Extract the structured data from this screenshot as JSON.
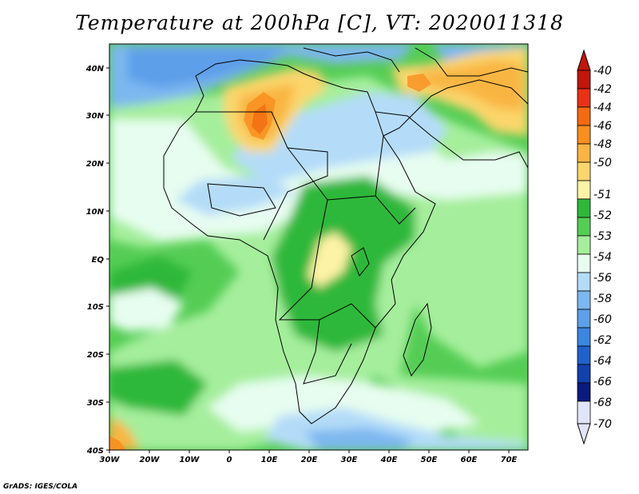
{
  "title": "Temperature at 200hPa [C], VT: 2020011318",
  "credit": "GrADS: IGES/COLA",
  "axes": {
    "lat_labels": [
      "40N",
      "30N",
      "20N",
      "10N",
      "EQ",
      "10S",
      "20S",
      "30S",
      "40S"
    ],
    "lon_labels": [
      "30W",
      "20W",
      "10W",
      "0",
      "10E",
      "20E",
      "30E",
      "40E",
      "50E",
      "60E",
      "70E"
    ]
  },
  "colorbar": {
    "levels": [
      "-40",
      "-42",
      "-44",
      "-46",
      "-48",
      "-50",
      "-51",
      "-52",
      "-53",
      "-54",
      "-56",
      "-58",
      "-60",
      "-62",
      "-64",
      "-66",
      "-68",
      "-70"
    ],
    "colors": [
      "#c0160b",
      "#e83218",
      "#f36a12",
      "#f98f1f",
      "#f9b543",
      "#fbd66c",
      "#fdf3a6",
      "#2fb83a",
      "#55cd55",
      "#a5ee9c",
      "#e7fdf0",
      "#b4dcf8",
      "#7db7ef",
      "#5d9fe9",
      "#3a86e0",
      "#1f62c9",
      "#1241ac",
      "#0a1a7e",
      "#e2e4fb"
    ],
    "top_color": "#c0160b",
    "bottom_color": "#e2e4fb"
  },
  "map": {
    "background_color": "#55cd55"
  }
}
